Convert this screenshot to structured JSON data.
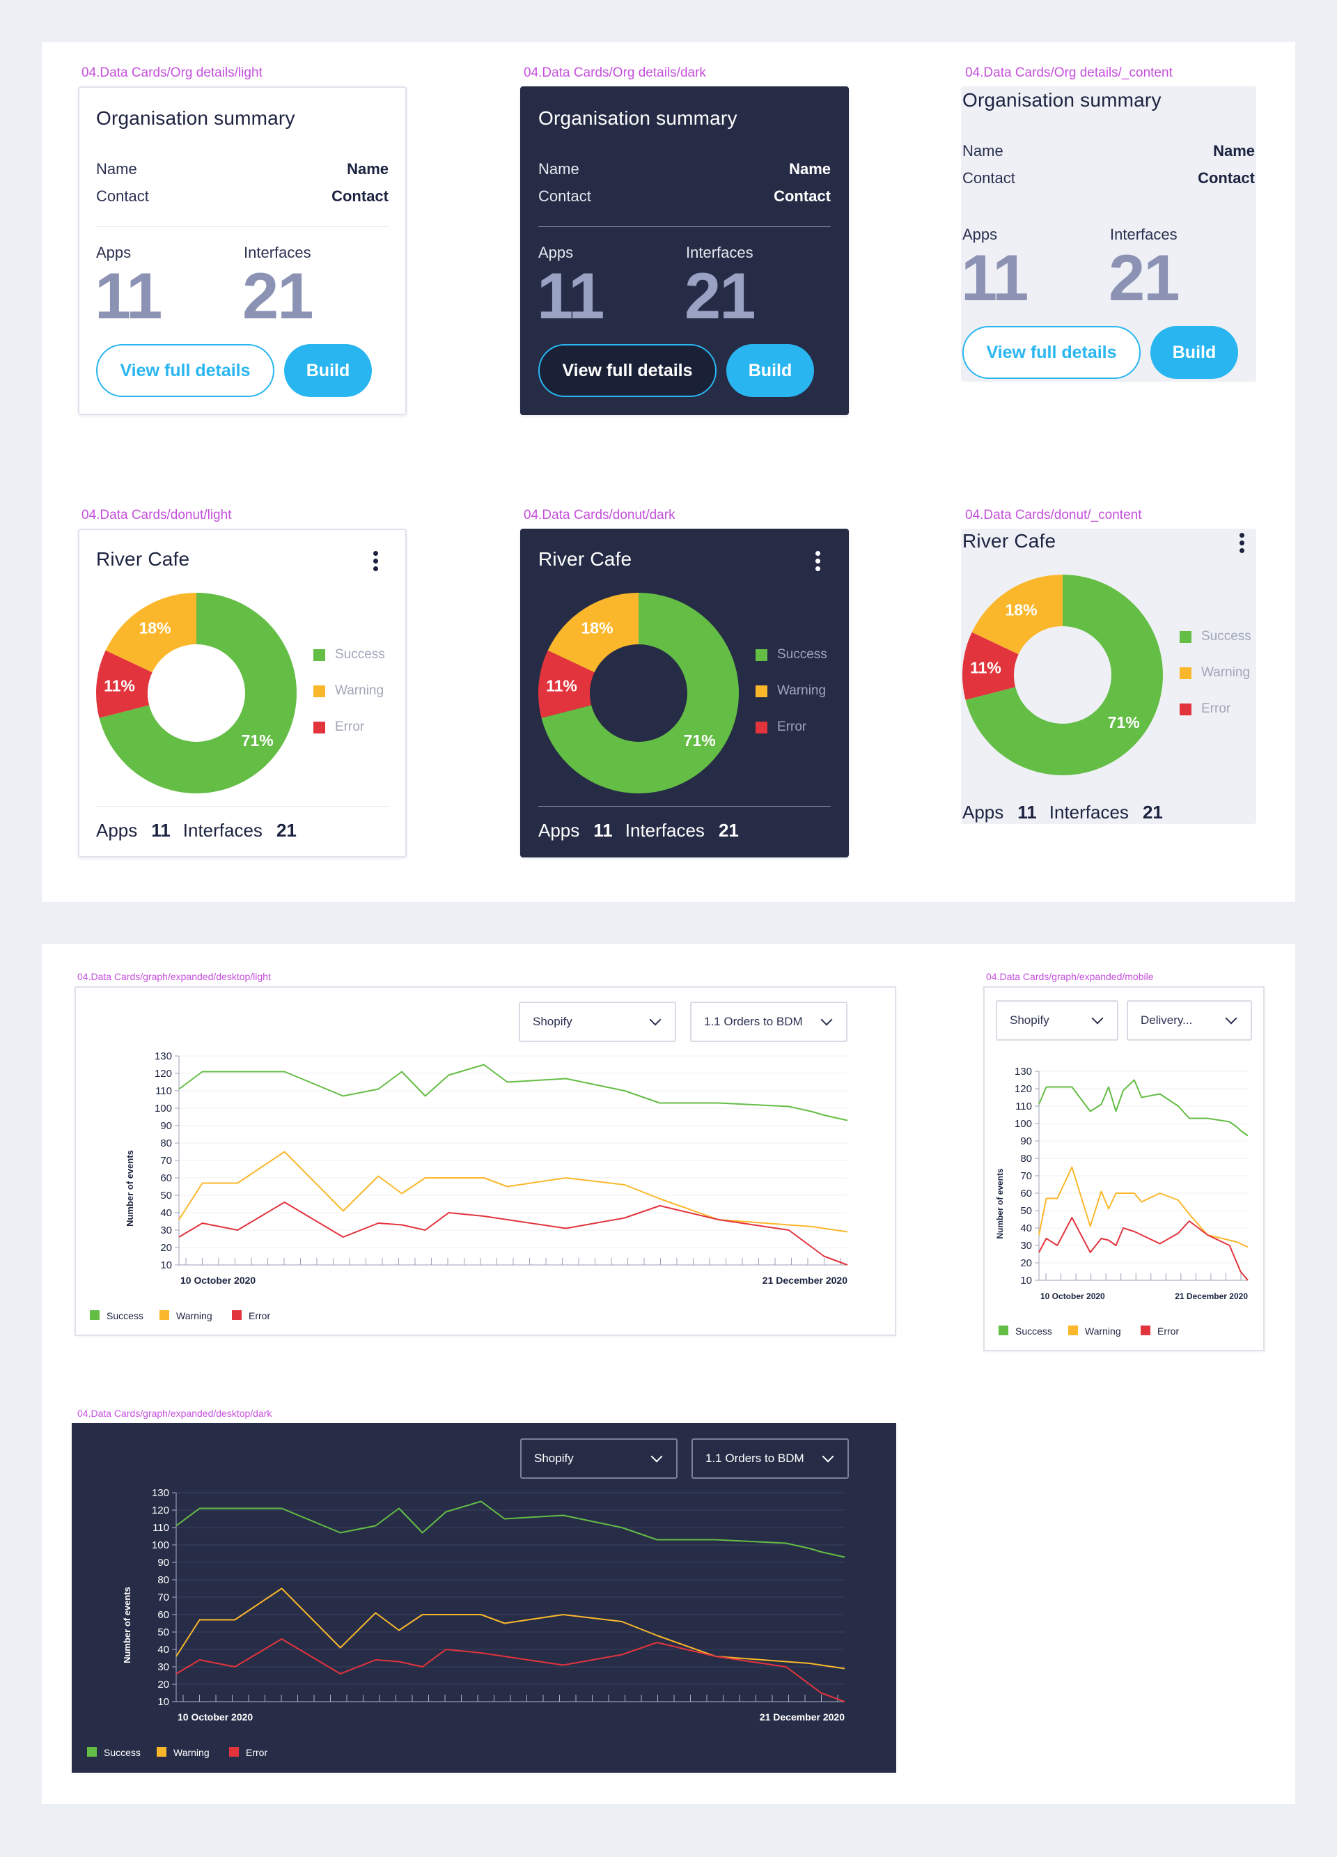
{
  "colors": {
    "success": "#64bd45",
    "warning": "#fbb72b",
    "error": "#e2343d",
    "accent": "#29b6f0",
    "dark_bg": "#262c46",
    "label": "#c54fdc"
  },
  "org": {
    "frame_labels": [
      "04.Data Cards/Org details/light",
      "04.Data Cards/Org details/dark",
      "04.Data Cards/Org details/_content"
    ],
    "title": "Organisation summary",
    "name_label": "Name",
    "name_value": "Name",
    "contact_label": "Contact",
    "contact_value": "Contact",
    "apps_label": "Apps",
    "apps_value": "11",
    "interfaces_label": "Interfaces",
    "interfaces_value": "21",
    "view_button": "View full details",
    "build_button": "Build"
  },
  "donut": {
    "frame_labels": [
      "04.Data Cards/donut/light",
      "04.Data Cards/donut/dark",
      "04.Data Cards/donut/_content"
    ],
    "title": "River Cafe",
    "menu_icon": "kebab-menu-icon",
    "slices": [
      {
        "label": "Success",
        "value": 71,
        "text": "71%"
      },
      {
        "label": "Error",
        "value": 11,
        "text": "11%"
      },
      {
        "label": "Warning",
        "value": 18,
        "text": "18%"
      }
    ],
    "legend": [
      "Success",
      "Warning",
      "Error"
    ],
    "apps_label": "Apps",
    "apps_value": "11",
    "interfaces_label": "Interfaces",
    "interfaces_value": "21"
  },
  "graph": {
    "frame_labels": [
      "04.Data Cards/graph/expanded/desktop/light",
      "04.Data Cards/graph/expanded/mobile",
      "04.Data Cards/graph/expanded/desktop/dark"
    ],
    "dropdown_1": "Shopify",
    "dropdown_2": "1.1 Orders to BDM",
    "dropdown_2_mobile": "Delivery...",
    "x_start": "10 October 2020",
    "x_end": "21 December 2020",
    "legend": [
      "Success",
      "Warning",
      "Error"
    ]
  },
  "chart_data": {
    "type": "line",
    "ylabel": "Number of events",
    "ylim": [
      10,
      130
    ],
    "yticks": [
      130,
      120,
      110,
      100,
      90,
      80,
      70,
      60,
      50,
      40,
      30,
      20,
      10
    ],
    "x_labels": [
      "10 October 2020",
      "21 December 2020"
    ],
    "x": [
      0,
      2,
      5,
      9,
      14,
      17,
      19,
      21,
      23,
      26,
      28,
      33,
      38,
      41,
      46,
      52,
      54,
      55,
      57
    ],
    "series": [
      {
        "name": "Success",
        "values": [
          111,
          121,
          121,
          121,
          107,
          111,
          121,
          107,
          119,
          125,
          115,
          117,
          110,
          103,
          103,
          101,
          98,
          96,
          93
        ]
      },
      {
        "name": "Warning",
        "values": [
          36,
          57,
          57,
          75,
          41,
          61,
          51,
          60,
          60,
          60,
          55,
          60,
          56,
          48,
          36,
          33,
          32,
          31,
          29
        ]
      },
      {
        "name": "Error",
        "values": [
          26,
          34,
          30,
          46,
          26,
          34,
          33,
          30,
          40,
          38,
          36,
          31,
          37,
          44,
          36,
          30,
          20,
          15,
          10
        ]
      }
    ]
  }
}
